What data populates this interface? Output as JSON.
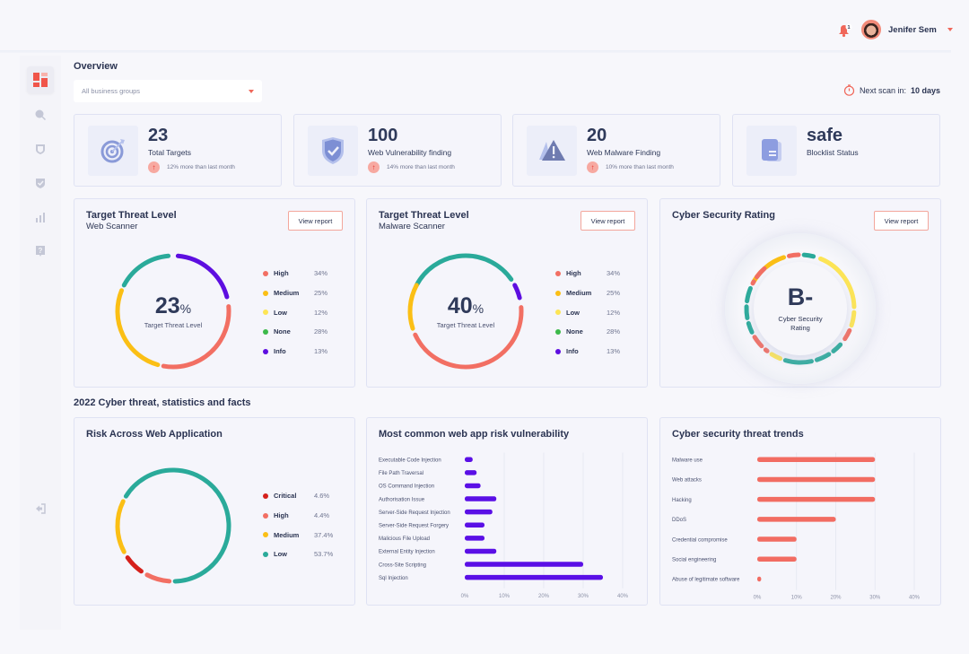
{
  "header": {
    "notification_count": "1",
    "user_name": "Jenifer Sem"
  },
  "sidebar": {
    "items": [
      {
        "name": "dashboard",
        "icon": "dashboard-icon",
        "active": true
      },
      {
        "name": "web-scanner",
        "icon": "globe-search-icon",
        "active": false
      },
      {
        "name": "shield",
        "icon": "shield-icon",
        "active": false
      },
      {
        "name": "verified-shield",
        "icon": "shield-check-icon",
        "active": false
      },
      {
        "name": "reports",
        "icon": "bar-chart-icon",
        "active": false
      },
      {
        "name": "help",
        "icon": "help-icon",
        "active": false
      }
    ],
    "logout_icon": "logout-icon"
  },
  "overview": {
    "title": "Overview",
    "dropdown_value": "All business groups",
    "next_scan_label": "Next scan in:",
    "next_scan_value": "10 days"
  },
  "stats": [
    {
      "value": "23",
      "label": "Total Targets",
      "trend": "12% more than last month",
      "icon": "target-icon"
    },
    {
      "value": "100",
      "label": "Web Vulnerability finding",
      "trend": "14% more than last month",
      "icon": "shield-check-icon"
    },
    {
      "value": "20",
      "label": "Web Malware Finding",
      "trend": "10% more than last month",
      "icon": "warning-icon"
    },
    {
      "value": "safe",
      "label": "Blocklist Status",
      "trend": null,
      "icon": "document-stack-icon"
    }
  ],
  "colors": {
    "high": "#f26f63",
    "medium": "#fbbf15",
    "low": "#fde555",
    "none": "#2aaa9a",
    "info": "#5d0ee0",
    "critical": "#d5201b",
    "bar_purple": "#5a0fe6",
    "bar_red": "#f26c62",
    "accent": "#f0675a"
  },
  "panels": {
    "web_scanner": {
      "title": "Target Threat Level",
      "subtitle": "Web Scanner",
      "button": "View report",
      "center_value": "23",
      "center_unit": "%",
      "center_caption": "Target Threat Level",
      "legend": [
        {
          "name": "High",
          "value": "34%",
          "color": "#f26f63"
        },
        {
          "name": "Medium",
          "value": "25%",
          "color": "#fbbf15"
        },
        {
          "name": "Low",
          "value": "12%",
          "color": "#fde555"
        },
        {
          "name": "None",
          "value": "28%",
          "color": "#3cb94a"
        },
        {
          "name": "Info",
          "value": "13%",
          "color": "#5d0ee0"
        }
      ]
    },
    "malware_scanner": {
      "title": "Target Threat Level",
      "subtitle": "Malware Scanner",
      "button": "View report",
      "center_value": "40",
      "center_unit": "%",
      "center_caption": "Target Threat Level",
      "legend": [
        {
          "name": "High",
          "value": "34%",
          "color": "#f26f63"
        },
        {
          "name": "Medium",
          "value": "25%",
          "color": "#fbbf15"
        },
        {
          "name": "Low",
          "value": "12%",
          "color": "#fde555"
        },
        {
          "name": "None",
          "value": "28%",
          "color": "#3cb94a"
        },
        {
          "name": "Info",
          "value": "13%",
          "color": "#5d0ee0"
        }
      ]
    },
    "rating": {
      "title": "Cyber Security Rating",
      "button": "View report",
      "grade": "B-",
      "caption": "Cyber Security Rating"
    }
  },
  "stats_section": {
    "title": "2022 Cyber threat, statistics and facts"
  },
  "chart_data": [
    {
      "type": "pie",
      "title": "Target Threat Level - Web Scanner",
      "center_label": "23%",
      "segments": [
        {
          "name": "None",
          "color": "#2aaa9a",
          "start_deg": -62,
          "end_deg": -5
        },
        {
          "name": "Info",
          "color": "#5d0ee0",
          "start_deg": 5,
          "end_deg": 75
        },
        {
          "name": "High",
          "color": "#f26f63",
          "start_deg": 85,
          "end_deg": 190
        },
        {
          "name": "Medium",
          "color": "#fbbf15",
          "start_deg": 196,
          "end_deg": 292
        }
      ]
    },
    {
      "type": "pie",
      "title": "Target Threat Level - Malware Scanner",
      "center_label": "40%",
      "segments": [
        {
          "name": "None",
          "color": "#2aaa9a",
          "start_deg": -62,
          "end_deg": 55
        },
        {
          "name": "Info",
          "color": "#5d0ee0",
          "start_deg": 62,
          "end_deg": 76
        },
        {
          "name": "High",
          "color": "#f26f63",
          "start_deg": 86,
          "end_deg": 245
        },
        {
          "name": "Medium",
          "color": "#fbbf15",
          "start_deg": 252,
          "end_deg": 298
        }
      ]
    },
    {
      "type": "pie",
      "title": "Risk Across Web Application",
      "segments": [
        {
          "name": "Critical",
          "label": "4.6%",
          "value": 4.6,
          "color": "#d5201b"
        },
        {
          "name": "High",
          "label": "4.4%",
          "value": 4.4,
          "color": "#f26f63"
        },
        {
          "name": "Medium",
          "label": "37.4%",
          "value": 37.4,
          "color": "#fbbf15"
        },
        {
          "name": "Low",
          "label": "53.7%",
          "value": 53.7,
          "color": "#2aaa9a"
        }
      ],
      "arc_layout": [
        {
          "name": "Low",
          "color": "#2aaa9a",
          "start_deg": -58,
          "end_deg": 178
        },
        {
          "name": "High",
          "color": "#f26f63",
          "start_deg": 184,
          "end_deg": 208
        },
        {
          "name": "Critical",
          "color": "#d5201b",
          "start_deg": 215,
          "end_deg": 235
        },
        {
          "name": "Medium",
          "color": "#fbbf15",
          "start_deg": 242,
          "end_deg": 296
        }
      ]
    },
    {
      "type": "bar",
      "orientation": "horizontal",
      "title": "Most common web app risk vulnerability",
      "categories": [
        "Executable Code Injection",
        "File Path Traversal",
        "OS Command Injection",
        "Authorisation Issue",
        "Server-Side Request Injection",
        "Server-Side Request Forgery",
        "Malicious File Upload",
        "External Entity Injection",
        "Cross-Site Scripting",
        "Sql Injection"
      ],
      "values": [
        2,
        3,
        4,
        8,
        7,
        5,
        5,
        8,
        30,
        35
      ],
      "xticks": [
        "0%",
        "10%",
        "20%",
        "30%",
        "40%"
      ],
      "xlim": [
        0,
        40
      ],
      "color": "#5a0fe6",
      "grid": true
    },
    {
      "type": "bar",
      "orientation": "horizontal",
      "title": "Cyber security threat trends",
      "categories": [
        "Malware use",
        "Web attacks",
        "Hacking",
        "DDoS",
        "Credential compromise",
        "Social engineering",
        "Abuse of legitimate software"
      ],
      "values": [
        30,
        30,
        30,
        20,
        10,
        10,
        1
      ],
      "xticks": [
        "0%",
        "10%",
        "20%",
        "30%",
        "40%"
      ],
      "xlim": [
        0,
        40
      ],
      "color": "#f26c62",
      "grid": true
    }
  ],
  "risk_panel": {
    "title": "Risk Across Web Application",
    "legend": [
      {
        "name": "Critical",
        "value": "4.6%",
        "color": "#d5201b"
      },
      {
        "name": "High",
        "value": "4.4%",
        "color": "#f26f63"
      },
      {
        "name": "Medium",
        "value": "37.4%",
        "color": "#fbbf15"
      },
      {
        "name": "Low",
        "value": "53.7%",
        "color": "#2aaa9a"
      }
    ]
  },
  "vuln_panel": {
    "title": "Most common web app risk vulnerability"
  },
  "trends_panel": {
    "title": "Cyber security threat trends"
  }
}
